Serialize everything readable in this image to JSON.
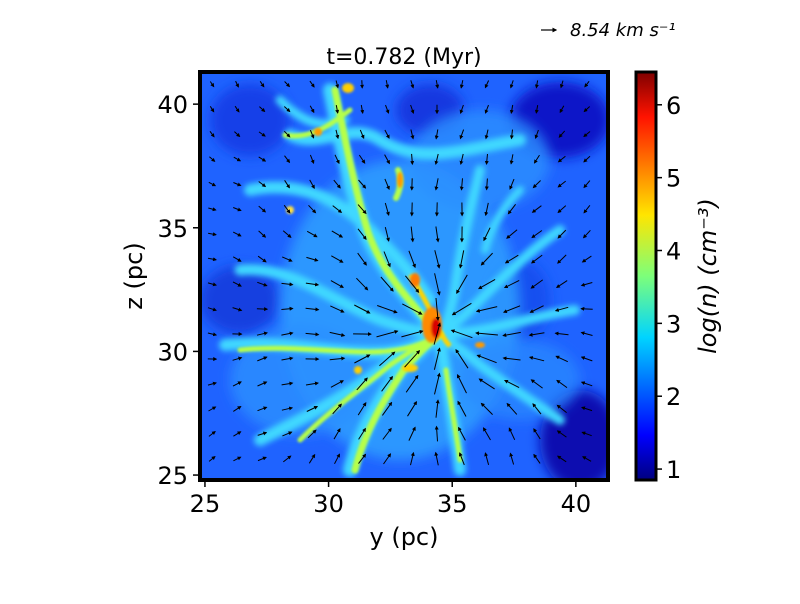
{
  "chart_data": {
    "type": "heatmap",
    "title": "t=0.782 (Myr)",
    "xlabel": "y (pc)",
    "ylabel": "z (pc)",
    "xlim": [
      24.8,
      41.3
    ],
    "ylim": [
      24.8,
      41.3
    ],
    "xticks": [
      "25",
      "30",
      "35",
      "40"
    ],
    "yticks": [
      "25",
      "30",
      "35",
      "40"
    ],
    "colorbar": {
      "label": "log(n) (cm⁻³)",
      "range": [
        0.85,
        6.45
      ],
      "ticks": [
        "1",
        "2",
        "3",
        "4",
        "5",
        "6"
      ],
      "colormap": "jet"
    },
    "quiver_key": {
      "value": 8.54,
      "label": "8.54 km s⁻¹"
    },
    "center": [
      34.4,
      30.8
    ],
    "colors": {
      "background_low": "#0000a8",
      "diffuse": "#1f63ff",
      "filament": "#3fd8ff",
      "dense": "#b6ff4a",
      "peak": "#c00000",
      "frame": "#000000"
    }
  }
}
